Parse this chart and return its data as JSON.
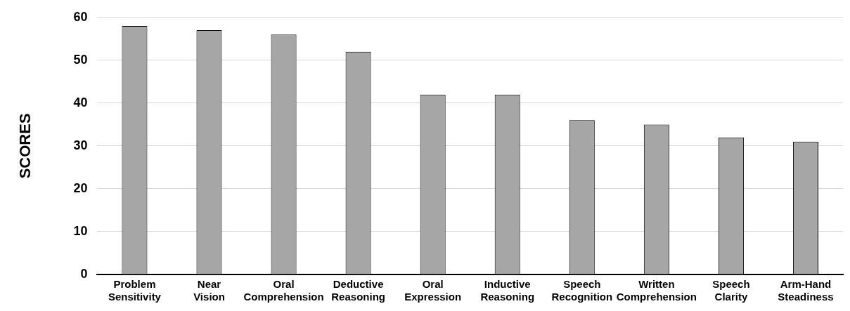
{
  "chart_data": {
    "type": "bar",
    "ylabel": "SCORES",
    "categories": [
      "Problem Sensitivity",
      "Near Vision",
      "Oral Comprehension",
      "Deductive Reasoning",
      "Oral Expression",
      "Inductive Reasoning",
      "Speech Recognition",
      "Written Comprehension",
      "Speech Clarity",
      "Arm-Hand Steadiness"
    ],
    "values": [
      58,
      57,
      56,
      52,
      42,
      42,
      36,
      35,
      32,
      31
    ],
    "color": "#a6a6a6",
    "ylim": [
      0,
      60
    ],
    "yticks": [
      0,
      10,
      20,
      30,
      40,
      50,
      60
    ],
    "grid": "y"
  }
}
